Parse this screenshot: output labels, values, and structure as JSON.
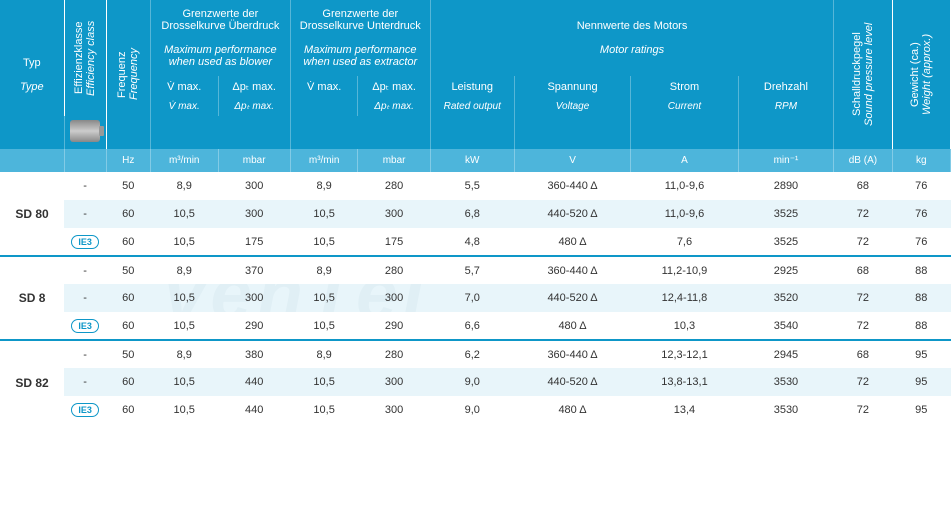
{
  "watermark": "venTel",
  "header": {
    "typ_de": "Typ",
    "typ_en": "Type",
    "effizienz_de": "Effizienzklasse",
    "effizienz_en": "Efficiency class",
    "frequenz_de": "Frequenz",
    "frequenz_en": "Frequency",
    "grenz_ueber_de": "Grenzwerte der Drosselkurve Überdruck",
    "grenz_ueber_en": "Maximum performance when used as blower",
    "grenz_unter_de": "Grenzwerte der Drosselkurve Unterdruck",
    "grenz_unter_en": "Maximum performance when used as extractor",
    "nennwerte_de": "Nennwerte des Motors",
    "nennwerte_en": "Motor ratings",
    "schall_de": "Schalldruckpegel",
    "schall_en": "Sound pressure level",
    "gewicht_de": "Gewicht (ca.)",
    "gewicht_en": "Weight (approx.)",
    "vmax_de": "V̇ max.",
    "vmax_en": "V̇ max.",
    "dpt_de": "Δpₜ max.",
    "dpt_en": "Δpₜ max.",
    "leistung_de": "Leistung",
    "leistung_en": "Rated output",
    "spannung_de": "Spannung",
    "spannung_en": "Voltage",
    "strom_de": "Strom",
    "strom_en": "Current",
    "drehzahl_de": "Drehzahl",
    "drehzahl_en": "RPM",
    "u_hz": "Hz",
    "u_m3min": "m³/min",
    "u_mbar": "mbar",
    "u_kw": "kW",
    "u_v": "V",
    "u_a": "A",
    "u_min": "min⁻¹",
    "u_db": "dB (A)",
    "u_kg": "kg"
  },
  "groups": [
    {
      "type": "SD 80",
      "rows": [
        {
          "eff": "-",
          "hz": "50",
          "vm1": "8,9",
          "dp1": "300",
          "vm2": "8,9",
          "dp2": "280",
          "kw": "5,5",
          "v": "360-440 Δ",
          "a": "11,0-9,6",
          "rpm": "2890",
          "db": "68",
          "kg": "76"
        },
        {
          "eff": "-",
          "hz": "60",
          "vm1": "10,5",
          "dp1": "300",
          "vm2": "10,5",
          "dp2": "300",
          "kw": "6,8",
          "v": "440-520 Δ",
          "a": "11,0-9,6",
          "rpm": "3525",
          "db": "72",
          "kg": "76"
        },
        {
          "eff": "IE3",
          "hz": "60",
          "vm1": "10,5",
          "dp1": "175",
          "vm2": "10,5",
          "dp2": "175",
          "kw": "4,8",
          "v": "480 Δ",
          "a": "7,6",
          "rpm": "3525",
          "db": "72",
          "kg": "76"
        }
      ]
    },
    {
      "type": "SD 8",
      "rows": [
        {
          "eff": "-",
          "hz": "50",
          "vm1": "8,9",
          "dp1": "370",
          "vm2": "8,9",
          "dp2": "280",
          "kw": "5,7",
          "v": "360-440 Δ",
          "a": "11,2-10,9",
          "rpm": "2925",
          "db": "68",
          "kg": "88"
        },
        {
          "eff": "-",
          "hz": "60",
          "vm1": "10,5",
          "dp1": "300",
          "vm2": "10,5",
          "dp2": "300",
          "kw": "7,0",
          "v": "440-520 Δ",
          "a": "12,4-11,8",
          "rpm": "3520",
          "db": "72",
          "kg": "88"
        },
        {
          "eff": "IE3",
          "hz": "60",
          "vm1": "10,5",
          "dp1": "290",
          "vm2": "10,5",
          "dp2": "290",
          "kw": "6,6",
          "v": "480 Δ",
          "a": "10,3",
          "rpm": "3540",
          "db": "72",
          "kg": "88"
        }
      ]
    },
    {
      "type": "SD 82",
      "rows": [
        {
          "eff": "-",
          "hz": "50",
          "vm1": "8,9",
          "dp1": "380",
          "vm2": "8,9",
          "dp2": "280",
          "kw": "6,2",
          "v": "360-440 Δ",
          "a": "12,3-12,1",
          "rpm": "2945",
          "db": "68",
          "kg": "95"
        },
        {
          "eff": "-",
          "hz": "60",
          "vm1": "10,5",
          "dp1": "440",
          "vm2": "10,5",
          "dp2": "300",
          "kw": "9,0",
          "v": "440-520 Δ",
          "a": "13,8-13,1",
          "rpm": "3530",
          "db": "72",
          "kg": "95"
        },
        {
          "eff": "IE3",
          "hz": "60",
          "vm1": "10,5",
          "dp1": "440",
          "vm2": "10,5",
          "dp2": "300",
          "kw": "9,0",
          "v": "480 Δ",
          "a": "13,4",
          "rpm": "3530",
          "db": "72",
          "kg": "95"
        }
      ]
    }
  ],
  "colors": {
    "header_bg": "#0e97c8",
    "unit_bg": "#4db5db",
    "row_light": "#d6ecf5",
    "accent": "#0e97c8"
  }
}
